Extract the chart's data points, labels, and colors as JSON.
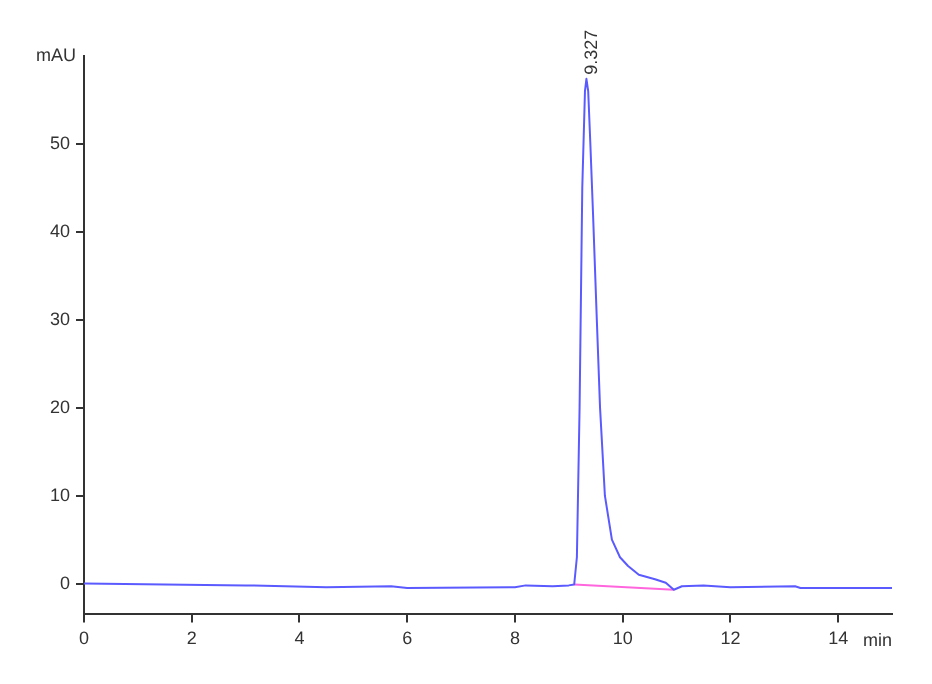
{
  "chart_data": {
    "type": "line",
    "xlabel": "min",
    "ylabel": "mAU",
    "xlim": [
      0,
      15
    ],
    "xticks": [
      0,
      2,
      4,
      6,
      8,
      10,
      12,
      14
    ],
    "ylim": [
      -3.5,
      60
    ],
    "yticks": [
      0,
      10,
      20,
      30,
      40,
      50
    ],
    "grid": false,
    "legend": false,
    "marker": "none",
    "line_style": "solid",
    "annotations": [
      {
        "text": "9.327",
        "x": 9.327,
        "y": 57.4
      }
    ],
    "series": [
      {
        "color": "#5a5aff",
        "x": [
          0,
          1.5,
          3,
          4.5,
          5.7,
          6,
          8,
          8.2,
          8.7,
          9.0,
          9.1,
          9.15,
          9.2,
          9.25,
          9.3,
          9.327,
          9.36,
          9.4,
          9.45,
          9.52,
          9.58,
          9.67,
          9.8,
          9.95,
          10.1,
          10.3,
          10.6,
          10.8,
          10.95,
          11.1,
          11.5,
          12,
          13.2,
          13.3,
          15
        ],
        "values": [
          0,
          -0.1,
          -0.2,
          -0.4,
          -0.3,
          -0.5,
          -0.4,
          -0.2,
          -0.3,
          -0.2,
          -0.1,
          3,
          20,
          45,
          56,
          57.4,
          56,
          50,
          42,
          30,
          20,
          10,
          5,
          3,
          2,
          1,
          0.5,
          0.1,
          -0.7,
          -0.3,
          -0.2,
          -0.4,
          -0.3,
          -0.5,
          -0.5
        ]
      },
      {
        "color": "#ff66dd",
        "x": [
          9.1,
          10.95
        ],
        "values": [
          -0.1,
          -0.7
        ]
      }
    ]
  }
}
